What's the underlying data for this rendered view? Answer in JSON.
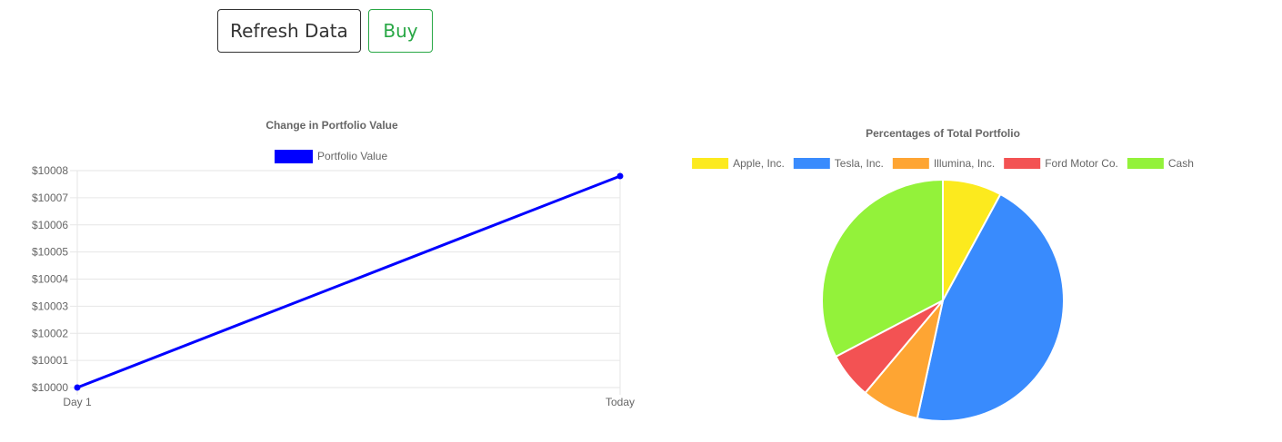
{
  "toolbar": {
    "refresh_label": "Refresh Data",
    "buy_label": "Buy"
  },
  "line_chart": {
    "title": "Change in Portfolio Value",
    "legend_label": "Portfolio Value",
    "color": "#0000ff"
  },
  "pie_chart": {
    "title": "Percentages of Total Portfolio"
  },
  "chart_data": [
    {
      "type": "line",
      "title": "Change in Portfolio Value",
      "xlabel": "",
      "ylabel": "",
      "categories": [
        "Day 1",
        "Today"
      ],
      "series": [
        {
          "name": "Portfolio Value",
          "values": [
            10000,
            10007.8
          ],
          "color": "#0000ff"
        }
      ],
      "ylim": [
        10000,
        10008
      ],
      "yticks": [
        "$10000",
        "$10001",
        "$10002",
        "$10003",
        "$10004",
        "$10005",
        "$10006",
        "$10007",
        "$10008"
      ],
      "grid": true,
      "legend": "top"
    },
    {
      "type": "pie",
      "title": "Percentages of Total Portfolio",
      "labels": [
        "Apple, Inc.",
        "Tesla, Inc.",
        "Illumina, Inc.",
        "Ford Motor Co.",
        "Cash"
      ],
      "values": [
        7.9,
        45.5,
        7.7,
        6.2,
        32.7
      ],
      "colors": [
        "#fcea1e",
        "#398bfd",
        "#fea533",
        "#f35253",
        "#93f23a"
      ],
      "legend": "top"
    }
  ]
}
